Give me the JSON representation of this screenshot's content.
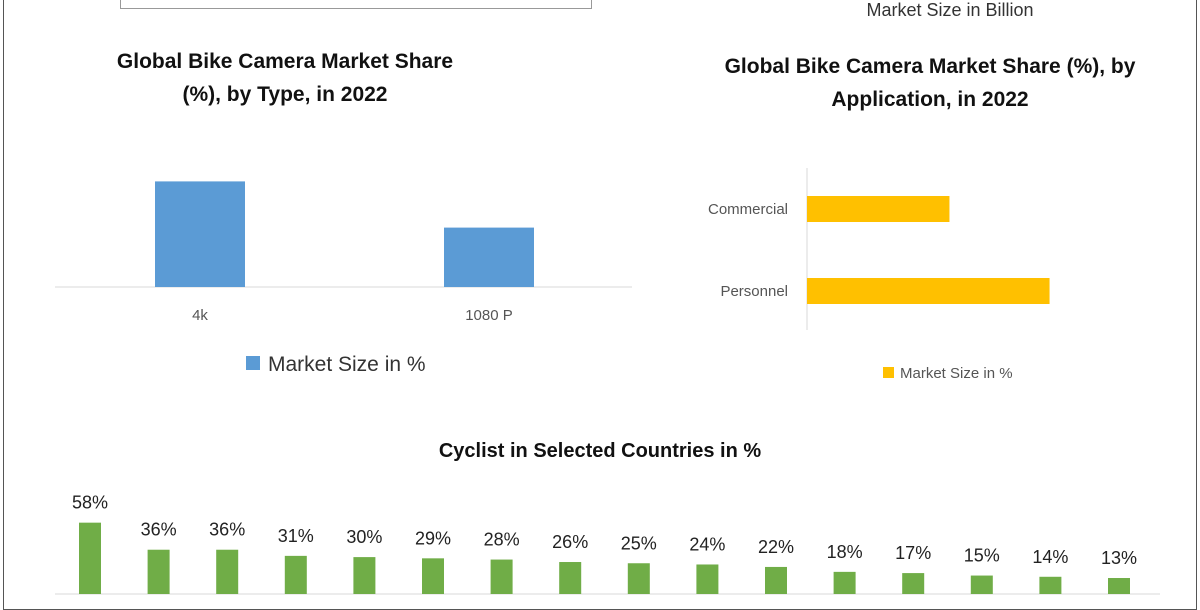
{
  "header": {
    "legend_text": "Market Size in Billion"
  },
  "chart_data": [
    {
      "type": "bar",
      "title": "Global Bike Camera Market Share (%), by Type, in 2022",
      "categories": [
        "4k",
        "1080 P"
      ],
      "series": [
        {
          "name": "Market Size in %",
          "values": [
            64,
            36
          ]
        }
      ],
      "legend": "bottom",
      "grid": false,
      "color": "#5b9bd5"
    },
    {
      "type": "bar",
      "orientation": "horizontal",
      "title": "Global Bike Camera Market Share (%), by Application, in 2022",
      "categories": [
        "Commercial",
        "Personnel"
      ],
      "series": [
        {
          "name": "Market Size in %",
          "values": [
            37,
            63
          ]
        }
      ],
      "legend": "bottom",
      "grid": false,
      "color": "#ffc000"
    },
    {
      "type": "bar",
      "title": "Cyclist in Selected Countries in %",
      "categories": [],
      "values": [
        58,
        36,
        36,
        31,
        30,
        29,
        28,
        26,
        25,
        24,
        22,
        18,
        17,
        15,
        14,
        13
      ],
      "labels": [
        "58%",
        "36%",
        "36%",
        "31%",
        "30%",
        "29%",
        "28%",
        "26%",
        "25%",
        "24%",
        "22%",
        "18%",
        "17%",
        "15%",
        "14%",
        "13%"
      ],
      "grid": false,
      "color": "#70ad47"
    }
  ]
}
